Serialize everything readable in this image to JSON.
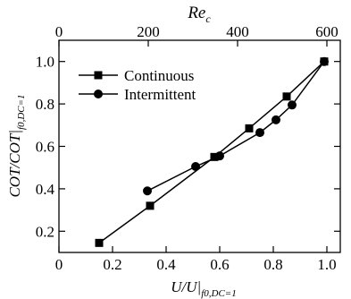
{
  "chart_data": {
    "type": "line",
    "xlabel": "U/U|",
    "xlabel_sub": "f0,DC=1",
    "ylabel": "COT/COT|",
    "ylabel_sub": "f0,DC=1",
    "top_xlabel": "Re",
    "top_xlabel_sub": "c",
    "xlim": [
      0,
      1.05
    ],
    "ylim": [
      0.1,
      1.1
    ],
    "top_xlim": [
      0,
      630
    ],
    "xticks": [
      0,
      0.2,
      0.4,
      0.6,
      0.8,
      1
    ],
    "xtick_labels": [
      "0",
      "0.2",
      "0.4",
      "0.6",
      "0.8",
      "1.0"
    ],
    "yticks": [
      0.2,
      0.4,
      0.6,
      0.8,
      1.0
    ],
    "ytick_labels": [
      "0.2",
      "0.4",
      "0.6",
      "0.8",
      "1.0"
    ],
    "top_xticks": [
      0,
      200,
      400,
      600
    ],
    "top_xtick_labels": [
      "0",
      "200",
      "400",
      "600"
    ],
    "grid": false,
    "legend_position": "top-left",
    "series": [
      {
        "name": "Continuous",
        "marker": "square",
        "x": [
          0.15,
          0.34,
          0.58,
          0.71,
          0.85,
          0.99
        ],
        "y": [
          0.145,
          0.32,
          0.55,
          0.685,
          0.835,
          1.0
        ]
      },
      {
        "name": "Intermittent",
        "marker": "circle",
        "x": [
          0.33,
          0.51,
          0.6,
          0.75,
          0.81,
          0.87,
          0.99
        ],
        "y": [
          0.39,
          0.505,
          0.555,
          0.665,
          0.725,
          0.795,
          1.0
        ]
      }
    ]
  }
}
